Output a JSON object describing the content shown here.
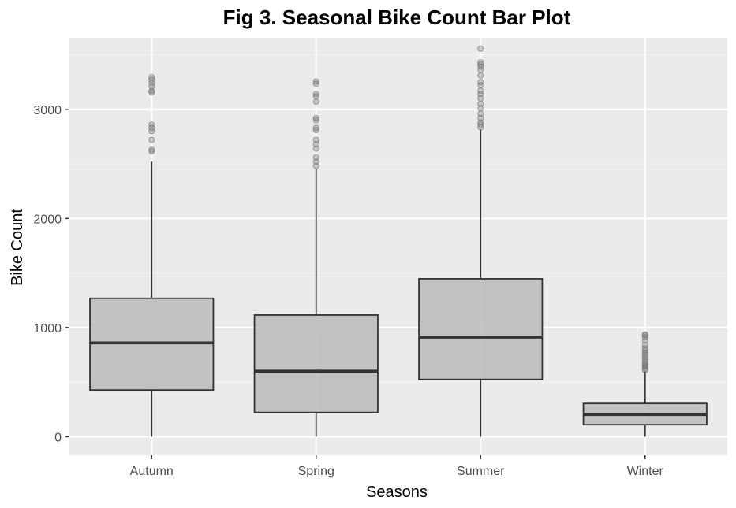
{
  "chart_data": {
    "type": "boxplot",
    "title": "Fig 3. Seasonal Bike Count Bar Plot",
    "xlabel": "Seasons",
    "ylabel": "Bike Count",
    "categories": [
      "Autumn",
      "Spring",
      "Summer",
      "Winter"
    ],
    "ylim": [
      -170,
      3655
    ],
    "yticks": [
      0,
      1000,
      2000,
      3000
    ],
    "grid": true,
    "legend": "none",
    "boxes": [
      {
        "category": "Autumn",
        "whisker_low": 0,
        "q1": 428,
        "median": 860,
        "q3": 1268,
        "whisker_high": 2520,
        "outliers": [
          2615,
          2630,
          2720,
          2800,
          2830,
          2860,
          3155,
          3170,
          3210,
          3240,
          3270,
          3295
        ]
      },
      {
        "category": "Spring",
        "whisker_low": 0,
        "q1": 222,
        "median": 601,
        "q3": 1115,
        "whisker_high": 2455,
        "outliers": [
          2480,
          2520,
          2560,
          2640,
          2680,
          2720,
          2810,
          2830,
          2900,
          2920,
          3070,
          3120,
          3140,
          3235,
          3255
        ]
      },
      {
        "category": "Summer",
        "whisker_low": 0,
        "q1": 525,
        "median": 912,
        "q3": 1447,
        "whisker_high": 2815,
        "outliers": [
          2835,
          2860,
          2880,
          2920,
          2960,
          3010,
          3050,
          3100,
          3140,
          3170,
          3220,
          3250,
          3310,
          3360,
          3390,
          3410,
          3430,
          3555
        ]
      },
      {
        "category": "Winter",
        "whisker_low": 0,
        "q1": 110,
        "median": 203,
        "q3": 305,
        "whisker_high": 600,
        "outliers": [
          610,
          625,
          640,
          655,
          670,
          690,
          710,
          730,
          750,
          770,
          790,
          810,
          840,
          880,
          910,
          930,
          937
        ]
      }
    ],
    "colors": {
      "panel": "#ebebeb",
      "grid_major": "#ffffff",
      "grid_minor": "#f2f2f2",
      "box_fill": "#bebebe",
      "box_line": "#333333",
      "outlier": "#707070",
      "tick_text": "#4d4d4d"
    }
  }
}
